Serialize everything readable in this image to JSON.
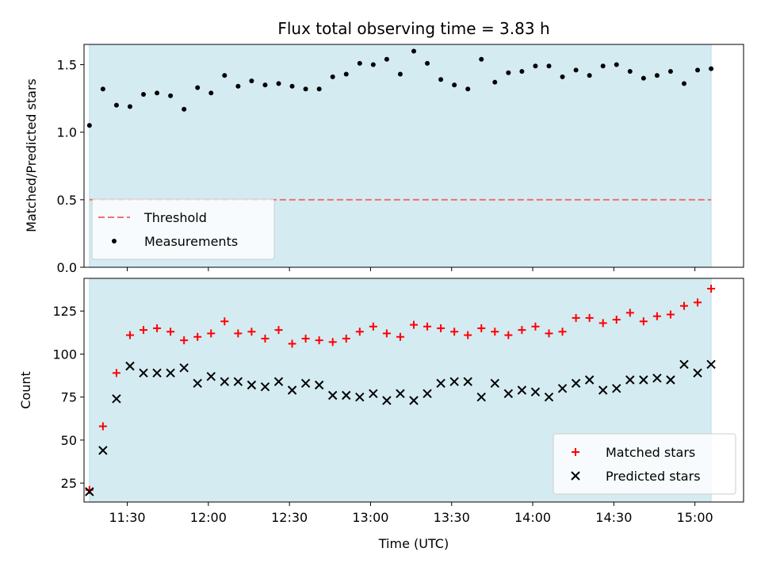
{
  "chart_data": [
    {
      "type": "scatter",
      "title": "Flux total observing time = 3.83 h",
      "xlabel": "",
      "ylabel": "Matched/Predicted stars",
      "xlim": [
        "11:14",
        "15:18"
      ],
      "ylim": [
        0,
        1.65
      ],
      "yticks": [
        0.0,
        0.5,
        1.0,
        1.5
      ],
      "ytick_labels": [
        "0.0",
        "0.5",
        "1.0",
        "1.5"
      ],
      "xticks": [
        "11:30",
        "12:00",
        "12:30",
        "13:00",
        "13:30",
        "14:00",
        "14:30",
        "15:00"
      ],
      "shaded_span": [
        "11:16",
        "15:06"
      ],
      "shade_color": "#d4ebf2",
      "legend_position": "lower-left",
      "series": [
        {
          "name": "Threshold",
          "style": "dashed-line",
          "color": "#f07070",
          "x": [
            "11:16",
            "15:06"
          ],
          "y": [
            0.5,
            0.5
          ]
        },
        {
          "name": "Measurements",
          "style": "dot",
          "color": "#000000",
          "x": [
            "11:16",
            "11:21",
            "11:26",
            "11:31",
            "11:36",
            "11:41",
            "11:46",
            "11:51",
            "11:56",
            "12:01",
            "12:06",
            "12:11",
            "12:16",
            "12:21",
            "12:26",
            "12:31",
            "12:36",
            "12:41",
            "12:46",
            "12:51",
            "12:56",
            "13:01",
            "13:06",
            "13:11",
            "13:16",
            "13:21",
            "13:26",
            "13:31",
            "13:36",
            "13:41",
            "13:46",
            "13:51",
            "13:56",
            "14:01",
            "14:06",
            "14:11",
            "14:16",
            "14:21",
            "14:26",
            "14:31",
            "14:36",
            "14:41",
            "14:46",
            "14:51",
            "14:56",
            "15:01",
            "15:06"
          ],
          "y": [
            1.05,
            1.32,
            1.2,
            1.19,
            1.28,
            1.29,
            1.27,
            1.17,
            1.33,
            1.29,
            1.42,
            1.34,
            1.38,
            1.35,
            1.36,
            1.34,
            1.32,
            1.32,
            1.41,
            1.43,
            1.51,
            1.5,
            1.54,
            1.43,
            1.6,
            1.51,
            1.39,
            1.35,
            1.32,
            1.54,
            1.37,
            1.44,
            1.45,
            1.49,
            1.49,
            1.41,
            1.46,
            1.42,
            1.49,
            1.5,
            1.45,
            1.4,
            1.42,
            1.45,
            1.36,
            1.46,
            1.47
          ]
        }
      ]
    },
    {
      "type": "scatter",
      "title": "",
      "xlabel": "Time (UTC)",
      "ylabel": "Count",
      "xlim": [
        "11:14",
        "15:18"
      ],
      "ylim": [
        14,
        144
      ],
      "yticks": [
        25,
        50,
        75,
        100,
        125
      ],
      "ytick_labels": [
        "25",
        "50",
        "75",
        "100",
        "125"
      ],
      "xticks": [
        "11:30",
        "12:00",
        "12:30",
        "13:00",
        "13:30",
        "14:00",
        "14:30",
        "15:00"
      ],
      "xtick_labels": [
        "11:30",
        "12:00",
        "12:30",
        "13:00",
        "13:30",
        "14:00",
        "14:30",
        "15:00"
      ],
      "shaded_span": [
        "11:16",
        "15:06"
      ],
      "shade_color": "#d4ebf2",
      "legend_position": "lower-right",
      "series": [
        {
          "name": "Matched stars",
          "style": "plus",
          "color": "#ff0000",
          "x": [
            "11:16",
            "11:21",
            "11:26",
            "11:31",
            "11:36",
            "11:41",
            "11:46",
            "11:51",
            "11:56",
            "12:01",
            "12:06",
            "12:11",
            "12:16",
            "12:21",
            "12:26",
            "12:31",
            "12:36",
            "12:41",
            "12:46",
            "12:51",
            "12:56",
            "13:01",
            "13:06",
            "13:11",
            "13:16",
            "13:21",
            "13:26",
            "13:31",
            "13:36",
            "13:41",
            "13:46",
            "13:51",
            "13:56",
            "14:01",
            "14:06",
            "14:11",
            "14:16",
            "14:21",
            "14:26",
            "14:31",
            "14:36",
            "14:41",
            "14:46",
            "14:51",
            "14:56",
            "15:01",
            "15:06"
          ],
          "y": [
            21,
            58,
            89,
            111,
            114,
            115,
            113,
            108,
            110,
            112,
            119,
            112,
            113,
            109,
            114,
            106,
            109,
            108,
            107,
            109,
            113,
            116,
            112,
            110,
            117,
            116,
            115,
            113,
            111,
            115,
            113,
            111,
            114,
            116,
            112,
            113,
            121,
            121,
            118,
            120,
            124,
            119,
            122,
            123,
            128,
            130,
            138
          ]
        },
        {
          "name": "Predicted stars",
          "style": "x",
          "color": "#000000",
          "x": [
            "11:16",
            "11:21",
            "11:26",
            "11:31",
            "11:36",
            "11:41",
            "11:46",
            "11:51",
            "11:56",
            "12:01",
            "12:06",
            "12:11",
            "12:16",
            "12:21",
            "12:26",
            "12:31",
            "12:36",
            "12:41",
            "12:46",
            "12:51",
            "12:56",
            "13:01",
            "13:06",
            "13:11",
            "13:16",
            "13:21",
            "13:26",
            "13:31",
            "13:36",
            "13:41",
            "13:46",
            "13:51",
            "13:56",
            "14:01",
            "14:06",
            "14:11",
            "14:16",
            "14:21",
            "14:26",
            "14:31",
            "14:36",
            "14:41",
            "14:46",
            "14:51",
            "14:56",
            "15:01",
            "15:06"
          ],
          "y": [
            20,
            44,
            74,
            93,
            89,
            89,
            89,
            92,
            83,
            87,
            84,
            84,
            82,
            81,
            84,
            79,
            83,
            82,
            76,
            76,
            75,
            77,
            73,
            77,
            73,
            77,
            83,
            84,
            84,
            75,
            83,
            77,
            79,
            78,
            75,
            80,
            83,
            85,
            79,
            80,
            85,
            85,
            86,
            85,
            94,
            89,
            94
          ]
        }
      ]
    }
  ]
}
